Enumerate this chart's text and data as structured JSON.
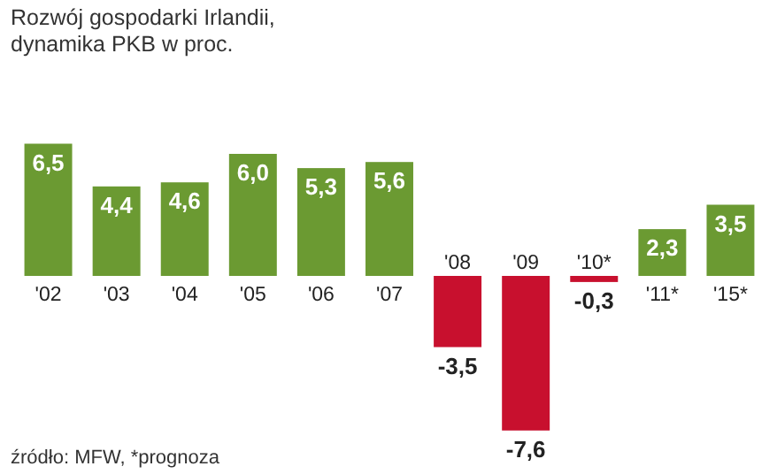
{
  "chart_data": {
    "type": "bar",
    "title": "Rozwój gospodarki Irlandii,\ndynamika PKB w proc.",
    "categories": [
      "'02",
      "'03",
      "'04",
      "'05",
      "'06",
      "'07",
      "'08",
      "'09",
      "'10*",
      "'11*",
      "'15*"
    ],
    "values": [
      6.5,
      4.4,
      4.6,
      6.0,
      5.3,
      5.6,
      -3.5,
      -7.6,
      -0.3,
      2.3,
      3.5
    ],
    "colors": [
      "#6b9a32",
      "#6b9a32",
      "#6b9a32",
      "#6b9a32",
      "#6b9a32",
      "#6b9a32",
      "#c8102e",
      "#c8102e",
      "#c8102e",
      "#6b9a32",
      "#6b9a32"
    ],
    "value_labels": [
      "6,5",
      "4,4",
      "4,6",
      "6,0",
      "5,3",
      "5,6",
      "-3,5",
      "-7,6",
      "-0,3",
      "2,3",
      "3,5"
    ],
    "annotations": [
      "źródło: MFW, *prognoza"
    ]
  }
}
